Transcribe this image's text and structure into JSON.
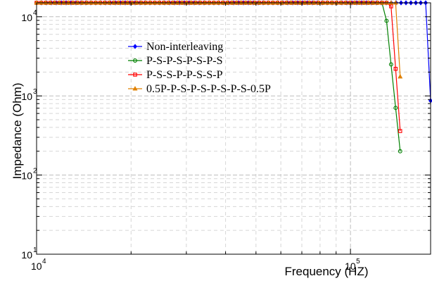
{
  "chart_data": {
    "type": "line",
    "xlabel": "Frequency (HZ)",
    "ylabel": "Impedance (Ohm)",
    "x_scale": "log",
    "y_scale": "log",
    "xlim": [
      10000,
      180000
    ],
    "ylim": [
      10,
      15000
    ],
    "grid": true,
    "legend_placement": "top-center",
    "x_ticks": [
      {
        "base": "10",
        "exp": "4",
        "value": 10000
      },
      {
        "base": "10",
        "exp": "5",
        "value": 100000
      }
    ],
    "y_ticks": [
      {
        "base": "10",
        "exp": "1",
        "value": 10
      },
      {
        "base": "10",
        "exp": "2",
        "value": 100
      },
      {
        "base": "10",
        "exp": "3",
        "value": 1000
      },
      {
        "base": "10",
        "exp": "4",
        "value": 10000
      }
    ],
    "series": [
      {
        "name": "Non-interleaving",
        "color": "#0000ff",
        "marker": "diamond",
        "resonance_hz": 144000,
        "peak_ohm": 14200,
        "end_hz": 180000,
        "end_ohm": 870
      },
      {
        "name": "P-S-P-S-P-S-P-S",
        "color": "#008000",
        "marker": "circle",
        "resonance_hz": 80000,
        "peak_ohm": 8500,
        "end_hz": 144000,
        "end_ohm": 200
      },
      {
        "name": "P-S-S-P-P-S-S-P",
        "color": "#ff0000",
        "marker": "square",
        "resonance_hz": 96000,
        "peak_ohm": 12900,
        "end_hz": 144000,
        "end_ohm": 360
      },
      {
        "name": "0.5P-P-S-P-S-P-S-P-S-0.5P",
        "color": "#e08000",
        "marker": "triangle",
        "resonance_hz": 118000,
        "peak_ohm": 9800,
        "end_hz": 144000,
        "end_ohm": 1750
      }
    ]
  }
}
